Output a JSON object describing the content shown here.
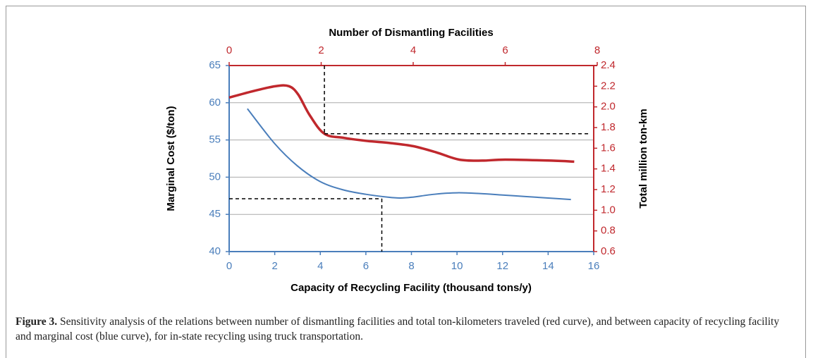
{
  "chart_data": {
    "type": "line",
    "x2_label": "Number of Dismantling Facilities",
    "x_label": "Capacity of Recycling Facility (thousand tons/y)",
    "y_label": "Marginal Cost ($/ton)",
    "y2_label": "Total million ton-km",
    "xlim": [
      0,
      16
    ],
    "xticks": [
      0,
      2,
      4,
      6,
      8,
      10,
      12,
      14,
      16
    ],
    "x2lim": [
      0,
      8
    ],
    "x2ticks": [
      0,
      2,
      4,
      6,
      8
    ],
    "ylim": [
      40,
      65
    ],
    "yticks": [
      40,
      45,
      50,
      55,
      60,
      65
    ],
    "y2lim": [
      0.6,
      2.4
    ],
    "y2ticks": [
      0.6,
      0.8,
      1.0,
      1.2,
      1.4,
      1.6,
      1.8,
      2.0,
      2.2,
      2.4
    ],
    "grid": true,
    "series": [
      {
        "color": "#4a7ebb",
        "x": [
          0.8,
          2,
          3,
          4,
          5,
          6,
          7,
          7.5,
          8,
          9,
          10,
          11,
          12,
          13,
          14,
          15
        ],
        "values": [
          59.2,
          54.5,
          51.5,
          49.4,
          48.3,
          47.7,
          47.3,
          47.2,
          47.3,
          47.7,
          47.9,
          47.8,
          47.6,
          47.4,
          47.2,
          47.0
        ]
      },
      {
        "color": "#c0282d",
        "axis": "y2",
        "x_axis": "x2",
        "x": [
          0,
          0.5,
          1,
          1.3,
          1.5,
          1.75,
          2.07,
          2.5,
          3,
          3.5,
          4,
          4.5,
          5,
          5.5,
          6,
          7,
          7.5
        ],
        "values": [
          2.09,
          2.15,
          2.2,
          2.2,
          2.12,
          1.92,
          1.74,
          1.7,
          1.67,
          1.65,
          1.62,
          1.56,
          1.49,
          1.48,
          1.49,
          1.48,
          1.47
        ]
      }
    ],
    "reference_lines": [
      {
        "axis": "x",
        "x": 6.7,
        "y": 47.1
      },
      {
        "axis": "x2",
        "x": 2.07,
        "y": 1.74
      }
    ]
  },
  "caption": {
    "label": "Figure 3.",
    "text": "Sensitivity analysis of the relations between number of dismantling facilities and total ton-kilometers traveled (red curve), and between capacity of recycling facility and marginal cost (blue curve), for in-state recycling using truck transportation."
  }
}
